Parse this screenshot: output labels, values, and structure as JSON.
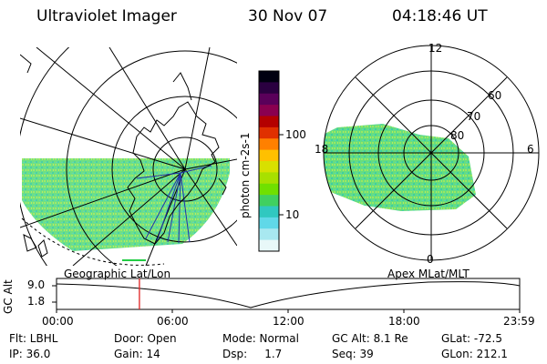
{
  "header": {
    "title": "Ultraviolet Imager",
    "date": "30 Nov 07",
    "time": "04:18:46 UT"
  },
  "panels": {
    "left_caption": "Geographic Lat/Lon",
    "right_caption": "Apex MLat/MLT",
    "right_mlt_labels": [
      "12",
      "18",
      "6",
      "0"
    ],
    "right_lat_labels": [
      "60",
      "70",
      "80"
    ]
  },
  "colorbar": {
    "unit_label": "photon cm-2s-1",
    "ticks": [
      "100",
      "10"
    ],
    "colors": [
      "#000010",
      "#2a0040",
      "#5a005a",
      "#8a0050",
      "#b40000",
      "#e03000",
      "#ff8000",
      "#ffc000",
      "#d8e000",
      "#a8e000",
      "#70e000",
      "#40d060",
      "#30c8c0",
      "#60d8e8",
      "#a8e8f0",
      "#e8f8f8"
    ]
  },
  "timeline": {
    "ylabel": "GC Alt",
    "yticks": [
      "9.0",
      "1.8"
    ],
    "xticks": [
      "00:00",
      "06:00",
      "12:00",
      "18:00",
      "23:59"
    ],
    "current_time_fraction": 0.179
  },
  "footer": {
    "row1": [
      "Flt: LBHL",
      "Door: Open",
      "Mode: Normal",
      "GC Alt: 8.1 Re",
      "GLat: -72.5"
    ],
    "row2": [
      "IP: 36.0",
      "Gain: 14",
      "Dsp:     1.7",
      "Seq: 39",
      "GLon: 212.1"
    ]
  },
  "colors": {
    "aurora_fill": "#55dd88",
    "marker": "#e02020",
    "meridian": "#2233aa"
  }
}
